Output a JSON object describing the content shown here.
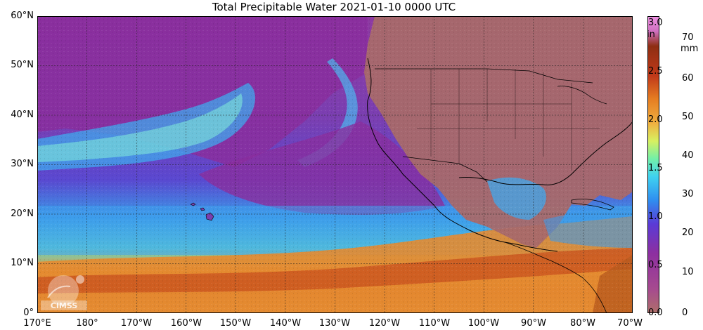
{
  "title": "Total Precipitable Water  2021-01-10 0000 UTC",
  "lat_labels": [
    "60°N",
    "50°N",
    "40°N",
    "30°N",
    "20°N",
    "10°N",
    "0°"
  ],
  "lon_labels": [
    "170°E",
    "180°",
    "170°W",
    "160°W",
    "150°W",
    "140°W",
    "130°W",
    "120°W",
    "110°W",
    "100°W",
    "90°W",
    "80°W",
    "70°W"
  ],
  "colorbar": {
    "inch_labels": [
      "3.0",
      "2.5",
      "2.0",
      "1.5",
      "1.0",
      "0.5",
      "0.0"
    ],
    "inch_unit": "in",
    "mm_labels": [
      "70",
      "60",
      "50",
      "40",
      "30",
      "20",
      "10",
      "0"
    ],
    "mm_unit": "mm",
    "stops": [
      "#ae6f6a",
      "#a64a8f",
      "#8d2fa0",
      "#5a3bd6",
      "#2f8ef0",
      "#3fd2f0",
      "#73f0a8",
      "#d8f060",
      "#f0b040",
      "#e67e22",
      "#c0391a",
      "#8e2e12",
      "#d070c0",
      "#ec90e0"
    ]
  },
  "logo": {
    "text": "CIMSS"
  },
  "colors": {
    "dry": "#ae7068",
    "low": "#8d2fa5",
    "mid": "#4a8fe0",
    "high": "#e58a2c",
    "border": "#000000",
    "grid": "#222222"
  }
}
